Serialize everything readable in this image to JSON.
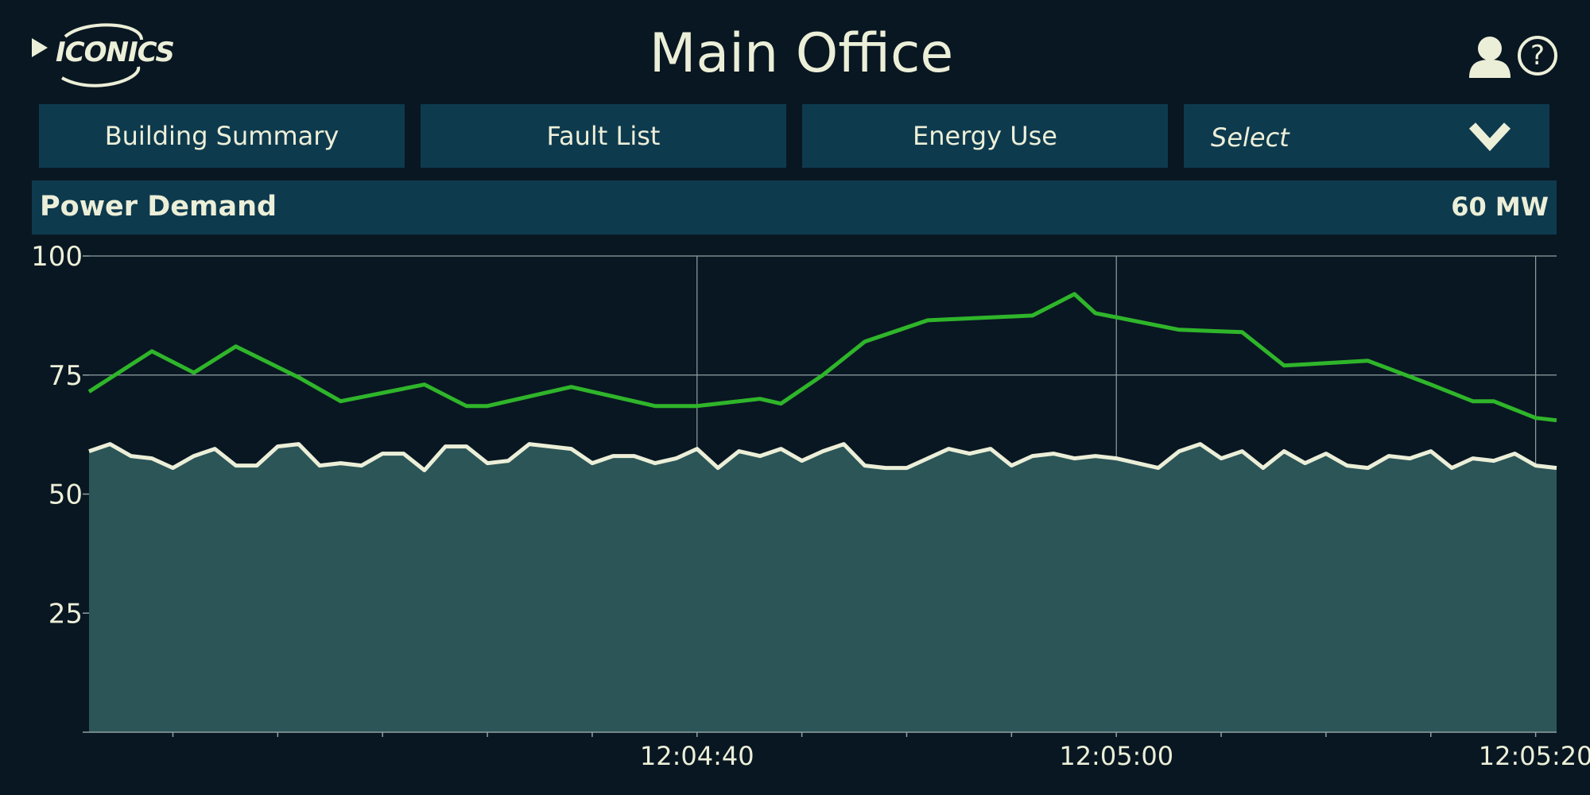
{
  "app": {
    "logo_text": "ICONICS",
    "title": "Main Office"
  },
  "icons": {
    "user": "user-icon",
    "help": "help-icon",
    "logo": "play-icon",
    "dropdown": "chevron-down-icon"
  },
  "nav": {
    "buttons": [
      {
        "label": "Building Summary"
      },
      {
        "label": "Fault List"
      },
      {
        "label": "Energy Use"
      }
    ],
    "select": {
      "value": "Select"
    }
  },
  "panel": {
    "label": "Power Demand",
    "value": "60 MW"
  },
  "colors": {
    "background": "#091722",
    "panel": "#0e3a4e",
    "text": "#ecefd8",
    "area_fill": "#2c5558",
    "series_green": "#2fb52a",
    "series_white": "#ecefd8",
    "grid": "#8fa2a2"
  },
  "chart_data": {
    "type": "line",
    "title": "",
    "xlabel": "",
    "ylabel": "",
    "ylim": [
      0,
      100
    ],
    "yticks": [
      100,
      75,
      50,
      25
    ],
    "x_range": [
      "12:04:11",
      "12:05:21"
    ],
    "xticks": [
      "12:04:40",
      "12:05:00",
      "12:05:20"
    ],
    "grid": true,
    "legend": "none",
    "series": [
      {
        "style": "line",
        "color": "#2fb52a",
        "x": [
          "12:04:11",
          "12:04:14",
          "12:04:16",
          "12:04:18",
          "12:04:21",
          "12:04:23",
          "12:04:27",
          "12:04:29",
          "12:04:30",
          "12:04:34",
          "12:04:38",
          "12:04:40",
          "12:04:43",
          "12:04:44",
          "12:04:46",
          "12:04:48",
          "12:04:51",
          "12:04:56",
          "12:04:58",
          "12:04:59",
          "12:05:03",
          "12:05:06",
          "12:05:08",
          "12:05:12",
          "12:05:15",
          "12:05:17",
          "12:05:18",
          "12:05:20",
          "12:05:20",
          "12:05:21"
        ],
        "values": [
          71.5,
          80,
          75.5,
          81,
          74.5,
          69.5,
          73,
          68.5,
          68.5,
          72.5,
          68.5,
          68.5,
          70,
          69,
          75,
          82,
          86.5,
          87.5,
          92,
          88,
          84.5,
          84,
          77,
          78,
          73,
          69.5,
          69.5,
          66,
          66,
          65.5
        ]
      },
      {
        "style": "area",
        "color": "#ecefd8",
        "x": [
          "12:04:11",
          "12:04:12",
          "12:04:13",
          "12:04:14",
          "12:04:15",
          "12:04:16",
          "12:04:17",
          "12:04:18",
          "12:04:19",
          "12:04:20",
          "12:04:21",
          "12:04:22",
          "12:04:23",
          "12:04:24",
          "12:04:25",
          "12:04:26",
          "12:04:27",
          "12:04:28",
          "12:04:29",
          "12:04:30",
          "12:04:31",
          "12:04:32",
          "12:04:33",
          "12:04:34",
          "12:04:35",
          "12:04:36",
          "12:04:37",
          "12:04:38",
          "12:04:39",
          "12:04:40",
          "12:04:41",
          "12:04:42",
          "12:04:43",
          "12:04:44",
          "12:04:45",
          "12:04:46",
          "12:04:47",
          "12:04:48",
          "12:04:49",
          "12:04:50",
          "12:04:51",
          "12:04:52",
          "12:04:53",
          "12:04:54",
          "12:04:55",
          "12:04:56",
          "12:04:57",
          "12:04:58",
          "12:04:59",
          "12:05:00",
          "12:05:01",
          "12:05:02",
          "12:05:03",
          "12:05:04",
          "12:05:05",
          "12:05:06",
          "12:05:07",
          "12:05:08",
          "12:05:09",
          "12:05:10",
          "12:05:11",
          "12:05:12",
          "12:05:13",
          "12:05:14",
          "12:05:15",
          "12:05:16",
          "12:05:17",
          "12:05:18",
          "12:05:19",
          "12:05:20",
          "12:05:21"
        ],
        "values": [
          59,
          60.5,
          58,
          57.5,
          55.5,
          58,
          59.5,
          56,
          56,
          60,
          60.5,
          56,
          56.5,
          56,
          58.5,
          58.5,
          55,
          60,
          60,
          56.5,
          57,
          60.5,
          60,
          59.5,
          56.5,
          58,
          58,
          56.5,
          57.5,
          59.5,
          55.5,
          59,
          58,
          59.5,
          57,
          59,
          60.5,
          56,
          55.5,
          55.5,
          57.5,
          59.5,
          58.5,
          59.5,
          56,
          58,
          58.5,
          57.5,
          58,
          57.5,
          56.5,
          55.5,
          59,
          60.5,
          57.5,
          59,
          55.5,
          59,
          56.5,
          58.5,
          56,
          55.5,
          58,
          57.5,
          59,
          55.5,
          57.5,
          57,
          58.5,
          56,
          55.5
        ]
      }
    ]
  }
}
